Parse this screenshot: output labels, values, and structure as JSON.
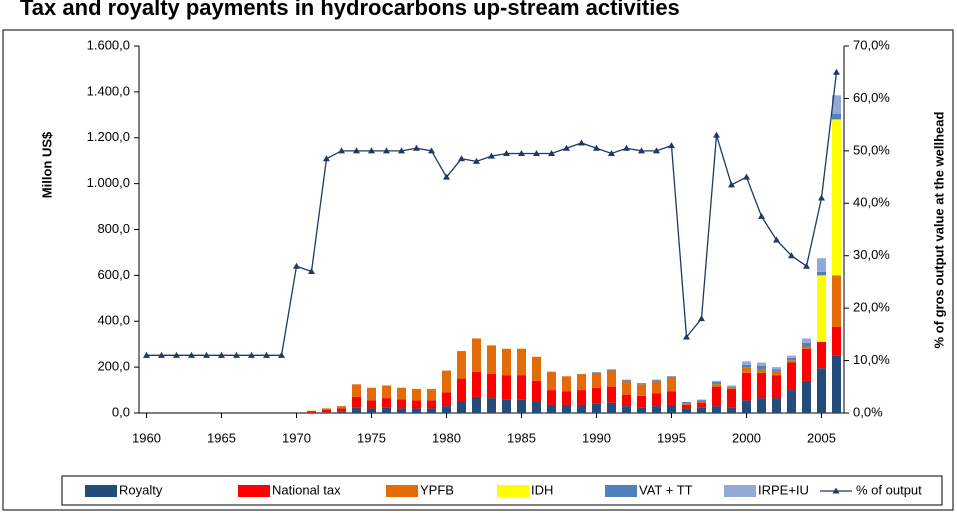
{
  "chart_data": {
    "type": "bar",
    "title": "Tax and royalty payments in hydrocarbons up-stream activities",
    "ylabel": "Millon US$",
    "y2label": "% of gros output  value at the wellhead",
    "x": [
      1960,
      1961,
      1962,
      1963,
      1964,
      1965,
      1966,
      1967,
      1968,
      1969,
      1970,
      1971,
      1972,
      1973,
      1974,
      1975,
      1976,
      1977,
      1978,
      1979,
      1980,
      1981,
      1982,
      1983,
      1984,
      1985,
      1986,
      1987,
      1988,
      1989,
      1990,
      1991,
      1992,
      1993,
      1994,
      1995,
      1996,
      1997,
      1998,
      1999,
      2000,
      2001,
      2002,
      2003,
      2004,
      2005,
      2006
    ],
    "xlim": [
      1959.5,
      2006.5
    ],
    "xticks": [
      1960,
      1965,
      1970,
      1975,
      1980,
      1985,
      1990,
      1995,
      2000,
      2005
    ],
    "ylim": [
      0,
      1600
    ],
    "yticks": [
      {
        "value": 0,
        "label": "0,0"
      },
      {
        "value": 200,
        "label": "200,0"
      },
      {
        "value": 400,
        "label": "400,0"
      },
      {
        "value": 600,
        "label": "600,0"
      },
      {
        "value": 800,
        "label": "800,0"
      },
      {
        "value": 1000,
        "label": "1.000,0"
      },
      {
        "value": 1200,
        "label": "1.200,0"
      },
      {
        "value": 1400,
        "label": "1.400,0"
      },
      {
        "value": 1600,
        "label": "1.600,0"
      }
    ],
    "y2lim": [
      0,
      70
    ],
    "y2ticks": [
      {
        "value": 0,
        "label": "0,0%"
      },
      {
        "value": 10,
        "label": "10,0%"
      },
      {
        "value": 20,
        "label": "20,0%"
      },
      {
        "value": 30,
        "label": "30,0%"
      },
      {
        "value": 40,
        "label": "40,0%"
      },
      {
        "value": 50,
        "label": "50,0%"
      },
      {
        "value": 60,
        "label": "60,0%"
      },
      {
        "value": 70,
        "label": "70,0%"
      }
    ],
    "stacked": true,
    "series": [
      {
        "name": "Royalty",
        "color": "#254a7c",
        "values": [
          0,
          0,
          0,
          0,
          0,
          0,
          0,
          0,
          0,
          0,
          0,
          0,
          3,
          5,
          25,
          20,
          25,
          20,
          20,
          20,
          30,
          50,
          70,
          65,
          60,
          60,
          50,
          35,
          35,
          35,
          40,
          45,
          30,
          25,
          30,
          35,
          20,
          25,
          30,
          25,
          55,
          65,
          65,
          100,
          140,
          195,
          250
        ]
      },
      {
        "name": "National tax",
        "color": "#ff0000",
        "values": [
          0,
          0,
          0,
          0,
          0,
          0,
          0,
          0,
          0,
          0,
          0,
          8,
          10,
          15,
          45,
          35,
          40,
          40,
          35,
          35,
          60,
          100,
          110,
          105,
          105,
          105,
          90,
          65,
          60,
          65,
          70,
          70,
          50,
          50,
          55,
          60,
          15,
          20,
          85,
          80,
          120,
          110,
          100,
          120,
          140,
          115,
          125
        ]
      },
      {
        "name": "YPFB",
        "color": "#e36c09",
        "values": [
          0,
          0,
          0,
          0,
          0,
          0,
          0,
          0,
          0,
          0,
          0,
          2,
          7,
          10,
          55,
          55,
          55,
          50,
          50,
          50,
          95,
          120,
          145,
          125,
          115,
          115,
          105,
          80,
          65,
          70,
          65,
          70,
          60,
          50,
          55,
          60,
          8,
          8,
          10,
          5,
          25,
          15,
          15,
          10,
          10,
          0,
          225
        ]
      },
      {
        "name": "IDH",
        "color": "#ffff00",
        "values": [
          0,
          0,
          0,
          0,
          0,
          0,
          0,
          0,
          0,
          0,
          0,
          0,
          0,
          0,
          0,
          0,
          0,
          0,
          0,
          0,
          0,
          0,
          0,
          0,
          0,
          0,
          0,
          0,
          0,
          0,
          0,
          0,
          0,
          0,
          0,
          0,
          0,
          0,
          0,
          0,
          0,
          0,
          0,
          0,
          0,
          290,
          680
        ]
      },
      {
        "name": "VAT + TT",
        "color": "#4f81bd",
        "values": [
          0,
          0,
          0,
          0,
          0,
          0,
          0,
          0,
          0,
          0,
          0,
          0,
          0,
          0,
          0,
          0,
          0,
          0,
          0,
          0,
          0,
          0,
          0,
          0,
          0,
          0,
          0,
          0,
          0,
          0,
          3,
          5,
          5,
          5,
          5,
          5,
          5,
          5,
          10,
          5,
          10,
          15,
          10,
          10,
          15,
          15,
          25
        ]
      },
      {
        "name": "IRPE+IU",
        "color": "#95a9d8",
        "values": [
          0,
          0,
          0,
          0,
          0,
          0,
          0,
          0,
          0,
          0,
          0,
          0,
          0,
          0,
          0,
          0,
          0,
          0,
          0,
          0,
          0,
          0,
          0,
          0,
          0,
          0,
          0,
          0,
          0,
          0,
          0,
          0,
          0,
          0,
          0,
          0,
          0,
          0,
          5,
          5,
          15,
          15,
          10,
          10,
          20,
          60,
          80
        ]
      },
      {
        "name": "% of output",
        "color": "#1f3864",
        "axis": "y2",
        "values": [
          11,
          11,
          11,
          11,
          11,
          11,
          11,
          11,
          11,
          11,
          28,
          27,
          48.5,
          50,
          50,
          50,
          50,
          50,
          50.5,
          50,
          45,
          48.5,
          48,
          49,
          49.5,
          49.5,
          49.5,
          49.5,
          50.5,
          51.5,
          50.5,
          49.5,
          50.5,
          50,
          50,
          51,
          14.5,
          18,
          53,
          43.5,
          45,
          37.5,
          33,
          30,
          28,
          41,
          65
        ]
      }
    ]
  }
}
